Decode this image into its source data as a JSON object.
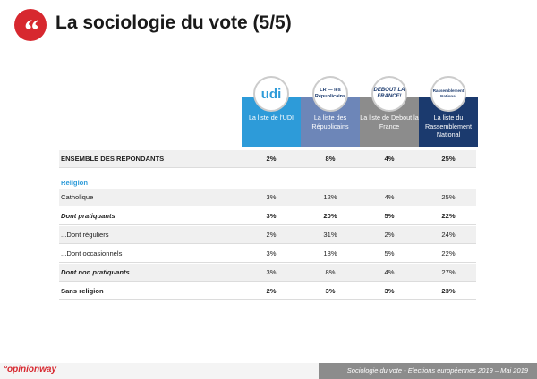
{
  "header": {
    "quote_mark": "“",
    "title": "La sociologie du vote (5/5)"
  },
  "columns": [
    {
      "logo": "udi",
      "label": "La liste de l'UDI"
    },
    {
      "logo": "LR — les Républicains",
      "label": "La liste des Républicains"
    },
    {
      "logo": "DEBOUT LA FRANCE!",
      "label": "La liste de Debout la France"
    },
    {
      "logo": "Rassemblement National",
      "label": "La liste du Rassemblement National"
    }
  ],
  "total_row": {
    "label": "ENSEMBLE DES REPONDANTS",
    "values": [
      "2%",
      "8%",
      "4%",
      "25%"
    ]
  },
  "section": {
    "label": "Religion"
  },
  "rows": [
    {
      "label": "Catholique",
      "values": [
        "3%",
        "12%",
        "4%",
        "25%"
      ]
    },
    {
      "label": "Dont pratiquants",
      "values": [
        "3%",
        "20%",
        "5%",
        "22%"
      ]
    },
    {
      "label": "...Dont réguliers",
      "values": [
        "2%",
        "31%",
        "2%",
        "24%"
      ]
    },
    {
      "label": "...Dont occasionnels",
      "values": [
        "3%",
        "18%",
        "5%",
        "22%"
      ]
    },
    {
      "label": "Dont non pratiquants",
      "values": [
        "3%",
        "8%",
        "4%",
        "27%"
      ]
    },
    {
      "label": "Sans religion",
      "values": [
        "2%",
        "3%",
        "3%",
        "23%"
      ]
    }
  ],
  "footer": {
    "brand": "°opinionway",
    "caption": "Sociologie du vote - Elections européennes 2019 – Mai 2019"
  },
  "colors": {
    "accent_red": "#d7282f",
    "udi": "#2d9bd9",
    "lr": "#6d86b8",
    "df": "#8c8c8c",
    "rn": "#1b3a6e"
  }
}
